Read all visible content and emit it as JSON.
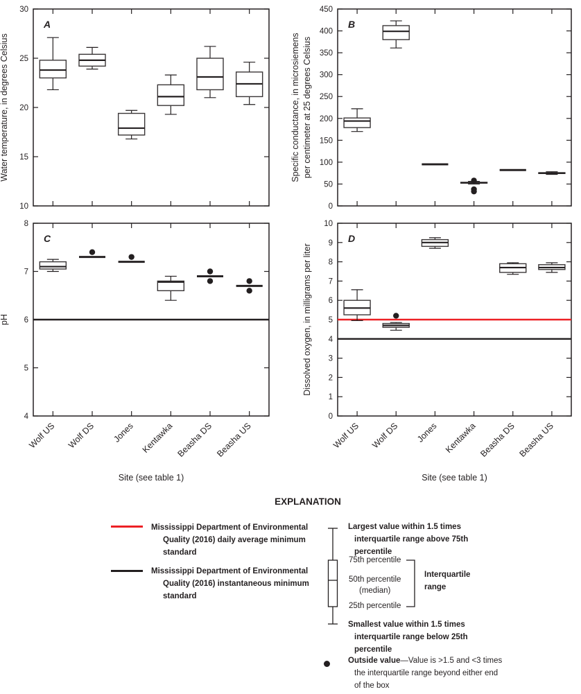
{
  "figure": {
    "explanation_title": "EXPLANATION"
  },
  "colors": {
    "standard_red": "#ed2024",
    "standard_black": "#231f20",
    "frame": "#231f20",
    "box_stroke": "#3a3637"
  },
  "chart_data": [
    {
      "type": "box",
      "panel_label": "A",
      "ylabel_lines": [
        "Water temperature,  in degrees Celsius"
      ],
      "ylim": [
        10,
        30
      ],
      "ytick_step": 5,
      "grid": false,
      "categories": [
        "Wolf US",
        "Wolf DS",
        "Jones",
        "Kentawka",
        "Beasha DS",
        "Beasha US"
      ],
      "boxes": [
        {
          "site": "Wolf US",
          "lo": 21.8,
          "q1": 23.0,
          "med": 23.8,
          "q3": 24.8,
          "hi": 27.1
        },
        {
          "site": "Wolf DS",
          "lo": 23.9,
          "q1": 24.2,
          "med": 24.8,
          "q3": 25.4,
          "hi": 26.1
        },
        {
          "site": "Jones",
          "lo": 16.8,
          "q1": 17.2,
          "med": 17.9,
          "q3": 19.4,
          "hi": 19.7
        },
        {
          "site": "Kentawka",
          "lo": 19.3,
          "q1": 20.2,
          "med": 21.1,
          "q3": 22.3,
          "hi": 23.3
        },
        {
          "site": "Beasha DS",
          "lo": 21.0,
          "q1": 21.8,
          "med": 23.1,
          "q3": 25.0,
          "hi": 26.2
        },
        {
          "site": "Beasha US",
          "lo": 20.3,
          "q1": 21.1,
          "med": 22.4,
          "q3": 23.6,
          "hi": 24.6
        }
      ],
      "outliers": [],
      "ref_lines": []
    },
    {
      "type": "box",
      "panel_label": "B",
      "ylabel_lines": [
        "Specific conductance,  in microsiemens",
        "per centimeter at 25 degrees Celsius"
      ],
      "ylim": [
        0,
        450
      ],
      "ytick_step": 50,
      "grid": false,
      "categories": [
        "Wolf US",
        "Wolf DS",
        "Jones",
        "Kentawka",
        "Beasha DS",
        "Beasha US"
      ],
      "boxes": [
        {
          "site": "Wolf US",
          "lo": 170,
          "q1": 179,
          "med": 194,
          "q3": 201,
          "hi": 222
        },
        {
          "site": "Wolf DS",
          "lo": 361,
          "q1": 380,
          "med": 399,
          "q3": 412,
          "hi": 423
        },
        {
          "site": "Jones",
          "lo": 95,
          "q1": 95,
          "med": 95,
          "q3": 95,
          "hi": 95
        },
        {
          "site": "Kentawka",
          "lo": 50,
          "q1": 52,
          "med": 53,
          "q3": 54,
          "hi": 56
        },
        {
          "site": "Beasha DS",
          "lo": 82,
          "q1": 82,
          "med": 82,
          "q3": 82,
          "hi": 82
        },
        {
          "site": "Beasha US",
          "lo": 72,
          "q1": 74,
          "med": 75,
          "q3": 76,
          "hi": 78
        }
      ],
      "outliers": [
        {
          "site_index": 3,
          "site": "Kentawka",
          "value": 58
        },
        {
          "site_index": 3,
          "site": "Kentawka",
          "value": 38
        },
        {
          "site_index": 3,
          "site": "Kentawka",
          "value": 33
        }
      ],
      "ref_lines": []
    },
    {
      "type": "box",
      "panel_label": "C",
      "ylabel_lines": [
        "pH"
      ],
      "ylim": [
        4,
        8
      ],
      "ytick_step": 1,
      "grid": false,
      "xlabel": "Site (see table 1)",
      "categories": [
        "Wolf US",
        "Wolf DS",
        "Jones",
        "Kentawka",
        "Beasha DS",
        "Beasha US"
      ],
      "boxes": [
        {
          "site": "Wolf US",
          "lo": 7.0,
          "q1": 7.05,
          "med": 7.1,
          "q3": 7.2,
          "hi": 7.25
        },
        {
          "site": "Wolf DS",
          "lo": 7.3,
          "q1": 7.3,
          "med": 7.3,
          "q3": 7.3,
          "hi": 7.3
        },
        {
          "site": "Jones",
          "lo": 7.2,
          "q1": 7.2,
          "med": 7.2,
          "q3": 7.2,
          "hi": 7.2
        },
        {
          "site": "Kentawka",
          "lo": 6.4,
          "q1": 6.6,
          "med": 6.78,
          "q3": 6.8,
          "hi": 6.9
        },
        {
          "site": "Beasha DS",
          "lo": 6.9,
          "q1": 6.9,
          "med": 6.9,
          "q3": 6.9,
          "hi": 6.9
        },
        {
          "site": "Beasha US",
          "lo": 6.7,
          "q1": 6.7,
          "med": 6.7,
          "q3": 6.7,
          "hi": 6.7
        }
      ],
      "outliers": [
        {
          "site_index": 1,
          "site": "Wolf DS",
          "value": 7.4
        },
        {
          "site_index": 2,
          "site": "Jones",
          "value": 7.3
        },
        {
          "site_index": 4,
          "site": "Beasha DS",
          "value": 7.0
        },
        {
          "site_index": 4,
          "site": "Beasha DS",
          "value": 6.8
        },
        {
          "site_index": 5,
          "site": "Beasha US",
          "value": 6.8
        },
        {
          "site_index": 5,
          "site": "Beasha US",
          "value": 6.6
        }
      ],
      "ref_lines": [
        {
          "value": 6,
          "color_key": "standard_black",
          "name": "instantaneous-minimum-standard-line"
        }
      ]
    },
    {
      "type": "box",
      "panel_label": "D",
      "ylabel_lines": [
        "Dissolved oxygen,  in milligrams per liter"
      ],
      "ylim": [
        0,
        10
      ],
      "ytick_step": 1,
      "grid": false,
      "xlabel": "Site (see table 1)",
      "categories": [
        "Wolf US",
        "Wolf DS",
        "Jones",
        "Kentawka",
        "Beasha DS",
        "Beasha US"
      ],
      "boxes": [
        {
          "site": "Wolf US",
          "lo": 4.95,
          "q1": 5.25,
          "med": 5.6,
          "q3": 6.0,
          "hi": 6.55
        },
        {
          "site": "Wolf DS",
          "lo": 4.45,
          "q1": 4.6,
          "med": 4.7,
          "q3": 4.8,
          "hi": 4.85
        },
        {
          "site": "Jones",
          "lo": 8.7,
          "q1": 8.8,
          "med": 9.0,
          "q3": 9.15,
          "hi": 9.25
        },
        null,
        {
          "site": "Beasha DS",
          "lo": 7.35,
          "q1": 7.45,
          "med": 7.7,
          "q3": 7.9,
          "hi": 7.95
        },
        {
          "site": "Beasha US",
          "lo": 7.45,
          "q1": 7.6,
          "med": 7.7,
          "q3": 7.85,
          "hi": 7.95
        }
      ],
      "outliers": [
        {
          "site_index": 1,
          "site": "Wolf DS",
          "value": 5.2
        }
      ],
      "ref_lines": [
        {
          "value": 5,
          "color_key": "standard_red",
          "name": "daily-average-minimum-standard-line"
        },
        {
          "value": 4,
          "color_key": "standard_black",
          "name": "instantaneous-minimum-standard-line"
        }
      ]
    }
  ],
  "legend": {
    "daily_standard": {
      "label": "Mississippi Department of Environmental Quality (2016) daily average minimum standard"
    },
    "instantaneous_standard": {
      "label": "Mississippi Department of Environmental Quality (2016) instantaneous minimum standard"
    },
    "boxplot_key": {
      "largest": "Largest value within 1.5 times interquartile range above 75th percentile",
      "p75": "75th percentile",
      "p50": "50th percentile",
      "median_paren": "(median)",
      "p25": "25th percentile",
      "iqr": "Interquartile range",
      "smallest": "Smallest value within 1.5 times interquartile range below 25th percentile",
      "outside_bold": "Outside value",
      "outside_rest": "—Value is >1.5 and <3 times the interquartile range beyond either end of the box"
    }
  }
}
